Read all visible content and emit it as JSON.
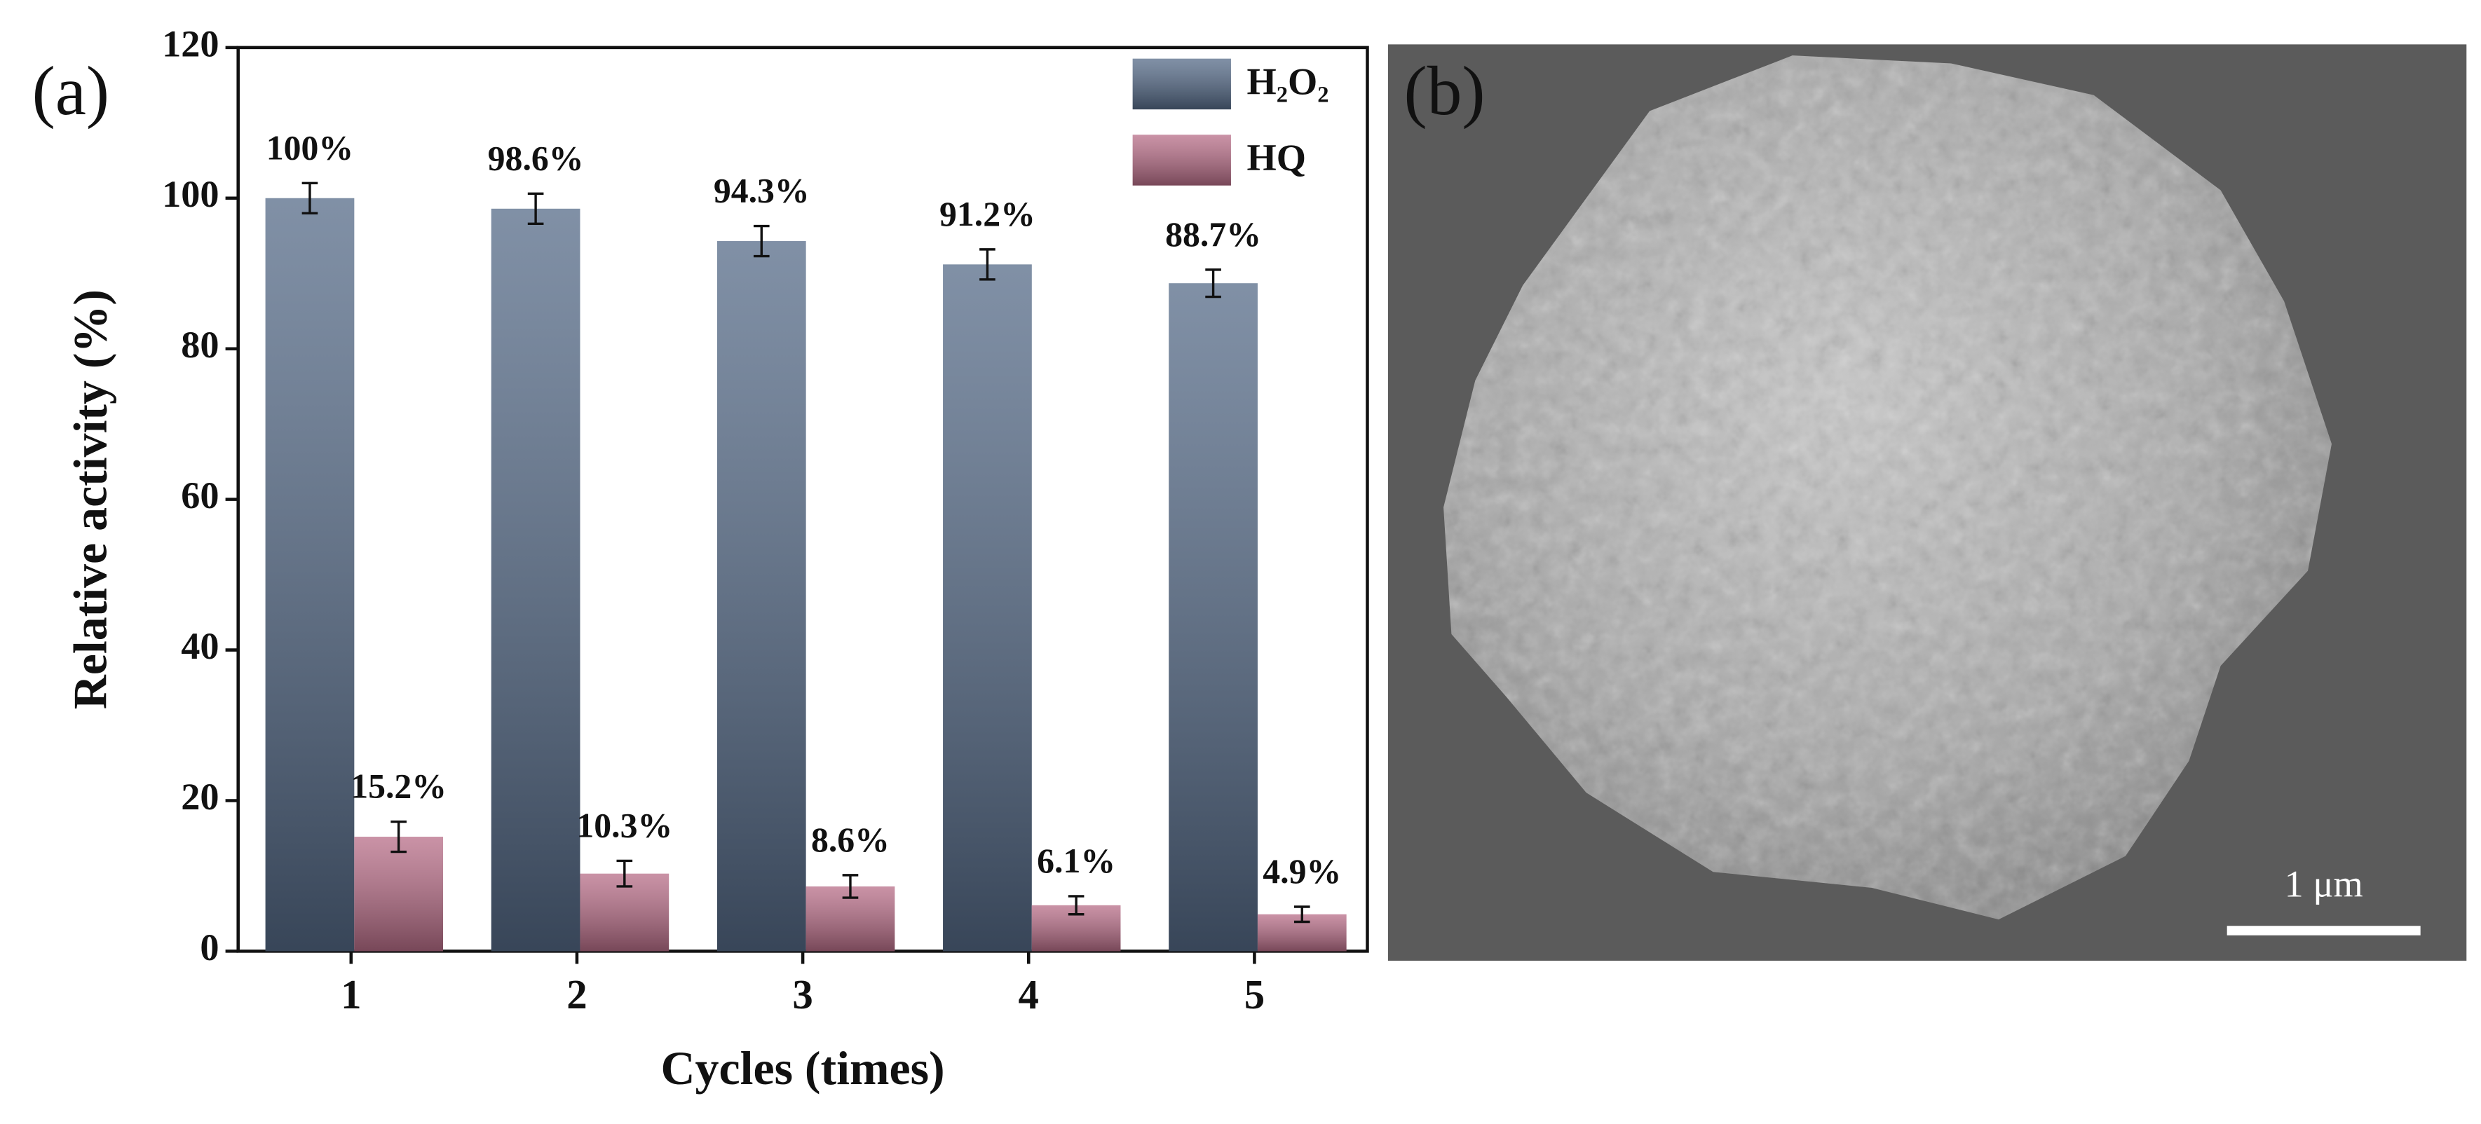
{
  "chart_data": {
    "type": "bar",
    "xlabel": "Cycles (times)",
    "ylabel": "Relative activity (%)",
    "categories": [
      "1",
      "2",
      "3",
      "4",
      "5"
    ],
    "series": [
      {
        "name": "H₂O₂",
        "color": "#566b88",
        "values": [
          100,
          98.6,
          94.3,
          91.2,
          88.7
        ],
        "errors": [
          2,
          2,
          2,
          2,
          1.8
        ],
        "value_labels": [
          "100%",
          "98.6%",
          "94.3%",
          "91.2%",
          "88.7%"
        ]
      },
      {
        "name": "HQ",
        "color": "#b86e88",
        "values": [
          15.2,
          10.3,
          8.6,
          6.1,
          4.9
        ],
        "errors": [
          2,
          1.7,
          1.5,
          1.2,
          1
        ],
        "value_labels": [
          "15.2%",
          "10.3%",
          "8.6%",
          "6.1%",
          "4.9%"
        ]
      }
    ],
    "ylim": [
      0,
      120
    ],
    "yticks": [
      0,
      20,
      40,
      60,
      80,
      100,
      120
    ],
    "legend": "upper right"
  },
  "panel_labels": [
    "(a)",
    "(b)"
  ],
  "scale_bar": "1 μm"
}
